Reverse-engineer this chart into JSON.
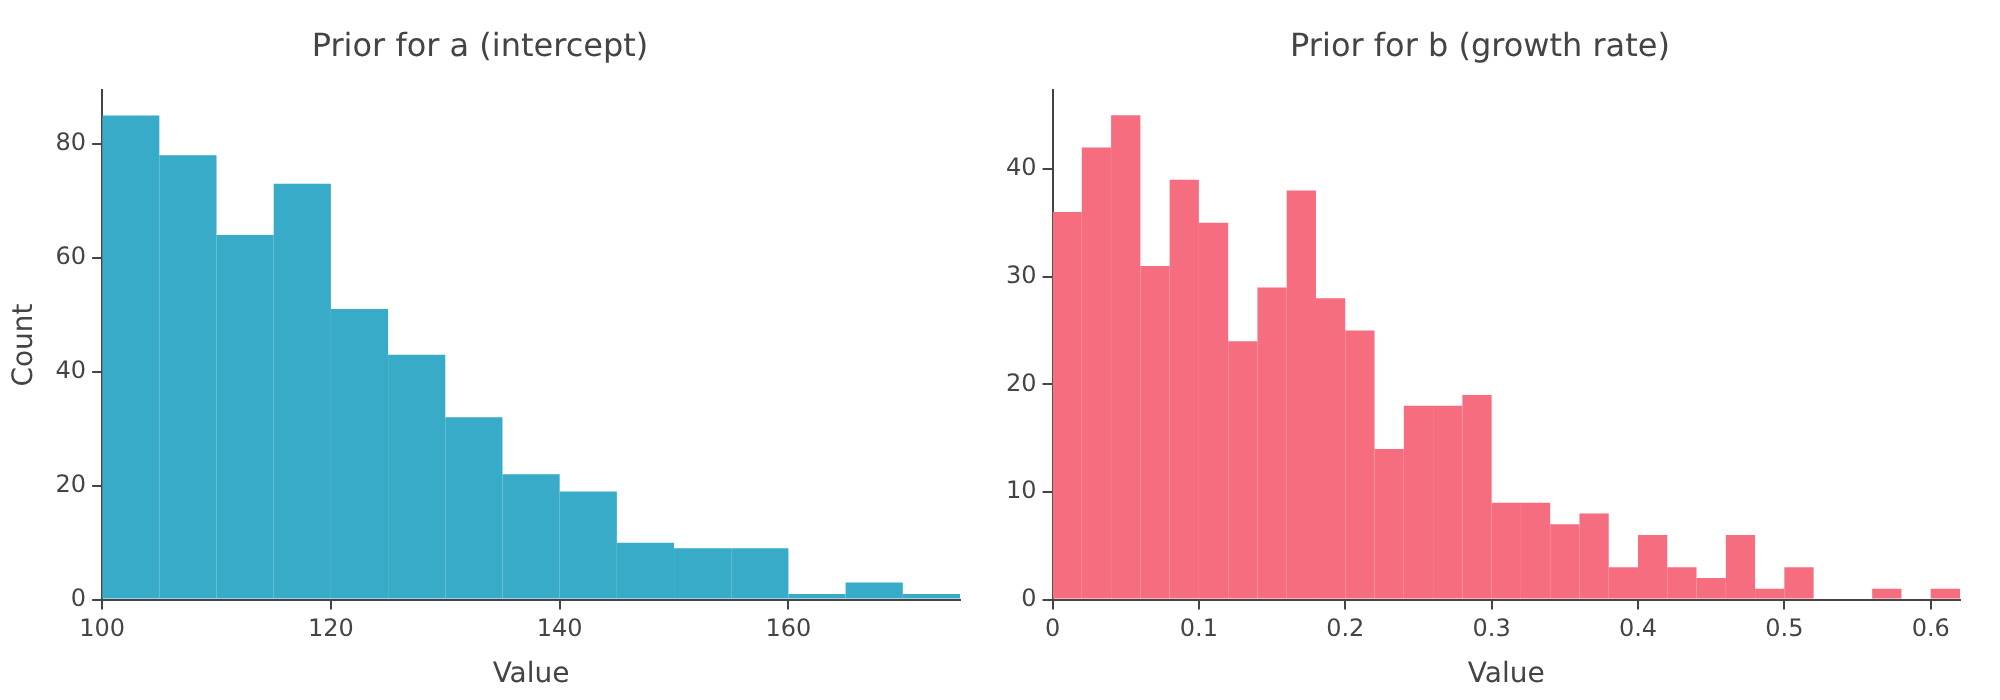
{
  "chart_data": [
    {
      "type": "histogram",
      "title": "Prior for a (intercept)",
      "xlabel": "Value",
      "ylabel": "Count",
      "color": "#37abc8",
      "bins": [
        100,
        105,
        110,
        115,
        120,
        125,
        130,
        135,
        140,
        145,
        150,
        155,
        160,
        165,
        170,
        175
      ],
      "values": [
        85,
        78,
        64,
        73,
        51,
        43,
        32,
        22,
        19,
        10,
        9,
        9,
        1,
        3,
        1
      ],
      "xlim": [
        100,
        175
      ],
      "xticks": [
        100,
        120,
        140,
        160
      ],
      "ylim": [
        0,
        89.4
      ],
      "yticks": [
        0,
        20,
        40,
        60,
        80
      ],
      "grid": false,
      "legend": false
    },
    {
      "type": "histogram",
      "title": "Prior for b (growth rate)",
      "xlabel": "Value",
      "color": "#f66d80",
      "bins": [
        0,
        0.02,
        0.04,
        0.06,
        0.08,
        0.1,
        0.12,
        0.14,
        0.16,
        0.18,
        0.2,
        0.22,
        0.24,
        0.26,
        0.28,
        0.3,
        0.32,
        0.34,
        0.36,
        0.38,
        0.4,
        0.42,
        0.44,
        0.46,
        0.48,
        0.5,
        0.52,
        0.54,
        0.56,
        0.58,
        0.6,
        0.62
      ],
      "values": [
        36,
        42,
        45,
        31,
        39,
        35,
        24,
        29,
        38,
        28,
        25,
        14,
        18,
        18,
        19,
        9,
        9,
        7,
        8,
        3,
        6,
        3,
        2,
        6,
        1,
        3,
        0,
        0,
        1,
        0,
        1
      ],
      "xlim": [
        0,
        0.62
      ],
      "xticks": [
        0,
        0.1,
        0.2,
        0.3,
        0.4,
        0.5,
        0.6
      ],
      "ylim": [
        0,
        47.3
      ],
      "yticks": [
        0,
        10,
        20,
        30,
        40
      ],
      "grid": false,
      "legend": false
    }
  ]
}
